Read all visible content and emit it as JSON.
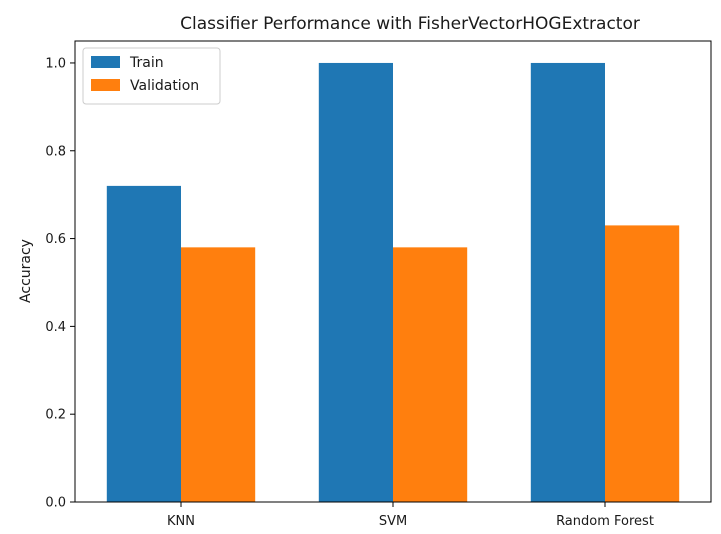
{
  "chart_data": {
    "type": "bar",
    "title": "Classifier Performance with FisherVectorHOGExtractor",
    "xlabel": "",
    "ylabel": "Accuracy",
    "categories": [
      "KNN",
      "SVM",
      "Random Forest"
    ],
    "series": [
      {
        "name": "Train",
        "color": "#1f77b4",
        "values": [
          0.72,
          1.0,
          1.0
        ]
      },
      {
        "name": "Validation",
        "color": "#ff7f0e",
        "values": [
          0.58,
          0.58,
          0.63
        ]
      }
    ],
    "ylim": [
      0,
      1.05
    ],
    "yticks": [
      "0.0",
      "0.2",
      "0.4",
      "0.6",
      "0.8",
      "1.0"
    ],
    "grid": false,
    "legend_position": "top-left"
  }
}
